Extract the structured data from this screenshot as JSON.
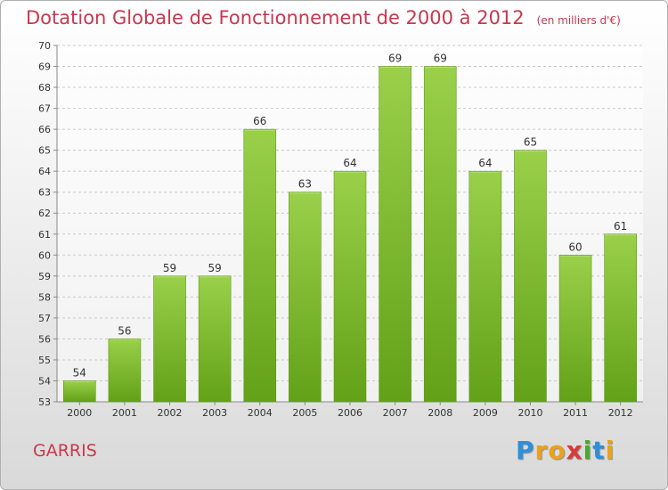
{
  "chart_data": {
    "type": "bar",
    "title": "Dotation Globale de Fonctionnement de 2000 à 2012",
    "subtitle": "(en milliers d'€)",
    "categories": [
      "2000",
      "2001",
      "2002",
      "2003",
      "2004",
      "2005",
      "2006",
      "2007",
      "2008",
      "2009",
      "2010",
      "2011",
      "2012"
    ],
    "values": [
      54,
      56,
      59,
      59,
      66,
      63,
      64,
      69,
      69,
      64,
      65,
      60,
      61
    ],
    "ylim": [
      53,
      70
    ],
    "yticks": [
      53,
      54,
      55,
      56,
      57,
      58,
      59,
      60,
      61,
      62,
      63,
      64,
      65,
      66,
      67,
      68,
      69,
      70
    ],
    "grid": true,
    "bar_color": "#7ab82e"
  },
  "location_label": "GARRIS",
  "logo": {
    "letters": [
      {
        "char": "P",
        "color": "#2f8fd8"
      },
      {
        "char": "r",
        "color": "#e9a21a"
      },
      {
        "char": "o",
        "color": "#e9a21a"
      },
      {
        "char": "x",
        "color": "#d83a3a"
      },
      {
        "char": "i",
        "color": "#4aa82e"
      },
      {
        "char": "t",
        "color": "#2f8fd8"
      },
      {
        "char": "i",
        "color": "#e9a21a"
      }
    ]
  }
}
